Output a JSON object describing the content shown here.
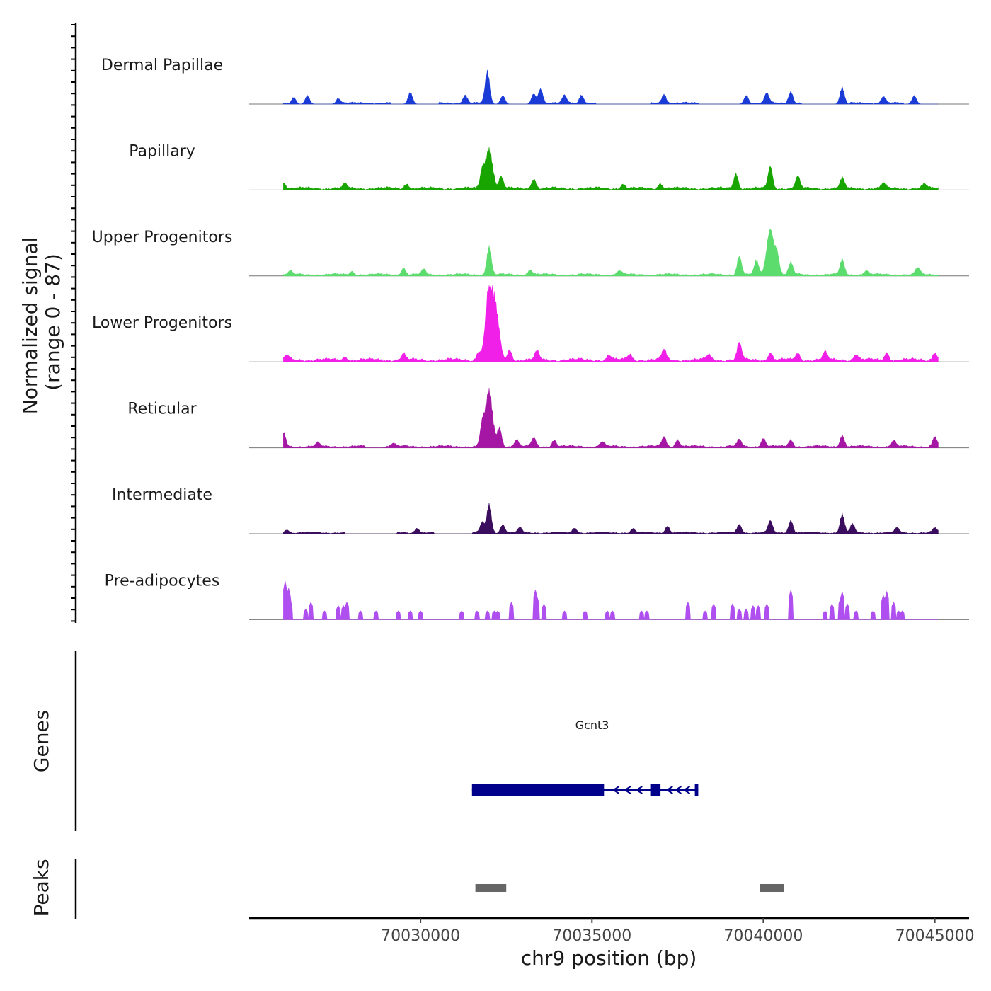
{
  "chart_data": {
    "type": "area",
    "figure": "coverage-plot",
    "y_axis": {
      "title_line1": "Normalized signal",
      "title_line2": "(range 0 - 87)",
      "range": [
        0,
        87
      ]
    },
    "x_axis": {
      "title": "chr9 position (bp)",
      "range": [
        70025000,
        70046000
      ],
      "ticks": [
        70030000,
        70035000,
        70040000,
        70045000
      ],
      "tick_labels": [
        "70030000",
        "70035000",
        "70040000",
        "70045000"
      ]
    },
    "genes_title": "Genes",
    "peaks_title": "Peaks",
    "signal_extent": [
      70026000,
      70045100
    ],
    "series": [
      {
        "name": "Dermal Papillae",
        "color": "#1a3bd6",
        "baseline": 1.5,
        "mode": "sparse",
        "gaps": [
          [
            70035400,
            70036700
          ],
          [
            70038400,
            70038700
          ],
          [
            70041500,
            70042300
          ]
        ],
        "peaks": [
          [
            70026300,
            8
          ],
          [
            70026700,
            10
          ],
          [
            70027600,
            6
          ],
          [
            70029700,
            14
          ],
          [
            70031300,
            10
          ],
          [
            70031950,
            38
          ],
          [
            70032400,
            10
          ],
          [
            70033300,
            12
          ],
          [
            70033500,
            18
          ],
          [
            70034200,
            9
          ],
          [
            70034700,
            10
          ],
          [
            70037100,
            11
          ],
          [
            70039500,
            10
          ],
          [
            70040100,
            12
          ],
          [
            70040800,
            14
          ],
          [
            70042300,
            20
          ],
          [
            70043500,
            8
          ],
          [
            70044400,
            10
          ]
        ]
      },
      {
        "name": "Papillary",
        "color": "#18a500",
        "baseline": 2.5,
        "mode": "dense",
        "peaks": [
          [
            70026000,
            8
          ],
          [
            70027800,
            5
          ],
          [
            70029600,
            6
          ],
          [
            70031800,
            20
          ],
          [
            70032000,
            48
          ],
          [
            70032350,
            14
          ],
          [
            70033300,
            12
          ],
          [
            70035900,
            5
          ],
          [
            70037000,
            6
          ],
          [
            70039200,
            18
          ],
          [
            70040200,
            26
          ],
          [
            70041000,
            14
          ],
          [
            70042300,
            12
          ],
          [
            70043500,
            6
          ],
          [
            70044700,
            5
          ]
        ]
      },
      {
        "name": "Upper Progenitors",
        "color": "#5ddc6e",
        "baseline": 2,
        "mode": "dense",
        "peaks": [
          [
            70026200,
            4
          ],
          [
            70028000,
            4
          ],
          [
            70029500,
            8
          ],
          [
            70030100,
            6
          ],
          [
            70032000,
            34
          ],
          [
            70033200,
            6
          ],
          [
            70035800,
            5
          ],
          [
            70039300,
            22
          ],
          [
            70039800,
            16
          ],
          [
            70040200,
            55
          ],
          [
            70040400,
            24
          ],
          [
            70040800,
            14
          ],
          [
            70042300,
            18
          ],
          [
            70043000,
            5
          ],
          [
            70044500,
            8
          ]
        ]
      },
      {
        "name": "Lower Progenitors",
        "color": "#f020e8",
        "baseline": 3,
        "mode": "dense",
        "peaks": [
          [
            70026100,
            5
          ],
          [
            70027800,
            4
          ],
          [
            70029500,
            7
          ],
          [
            70031700,
            10
          ],
          [
            70032000,
            87
          ],
          [
            70032200,
            55
          ],
          [
            70032600,
            12
          ],
          [
            70033400,
            10
          ],
          [
            70035500,
            6
          ],
          [
            70036100,
            7
          ],
          [
            70037100,
            12
          ],
          [
            70038400,
            6
          ],
          [
            70039300,
            20
          ],
          [
            70040200,
            9
          ],
          [
            70041000,
            8
          ],
          [
            70041800,
            9
          ],
          [
            70042700,
            7
          ],
          [
            70043600,
            9
          ],
          [
            70045000,
            10
          ]
        ]
      },
      {
        "name": "Reticular",
        "color": "#a516a5",
        "baseline": 2,
        "mode": "dense",
        "gaps": [
          [
            70028400,
            70028900
          ]
        ],
        "peaks": [
          [
            70026000,
            17
          ],
          [
            70027000,
            4
          ],
          [
            70029200,
            4
          ],
          [
            70031800,
            24
          ],
          [
            70032000,
            66
          ],
          [
            70032300,
            22
          ],
          [
            70032800,
            8
          ],
          [
            70033300,
            10
          ],
          [
            70033900,
            8
          ],
          [
            70035300,
            6
          ],
          [
            70037100,
            12
          ],
          [
            70037500,
            8
          ],
          [
            70039300,
            8
          ],
          [
            70040000,
            10
          ],
          [
            70040800,
            8
          ],
          [
            70042300,
            14
          ],
          [
            70043800,
            7
          ],
          [
            70045000,
            12
          ]
        ]
      },
      {
        "name": "Intermediate",
        "color": "#3b0d5e",
        "baseline": 1.5,
        "mode": "dense",
        "gaps": [
          [
            70027800,
            70029300
          ],
          [
            70030400,
            70031500
          ]
        ],
        "peaks": [
          [
            70026100,
            4
          ],
          [
            70029900,
            6
          ],
          [
            70031800,
            12
          ],
          [
            70032000,
            34
          ],
          [
            70032400,
            10
          ],
          [
            70032900,
            6
          ],
          [
            70034500,
            6
          ],
          [
            70036200,
            5
          ],
          [
            70037200,
            8
          ],
          [
            70039300,
            10
          ],
          [
            70040200,
            14
          ],
          [
            70040800,
            15
          ],
          [
            70042300,
            22
          ],
          [
            70042600,
            10
          ],
          [
            70043900,
            6
          ],
          [
            70045000,
            6
          ]
        ]
      },
      {
        "name": "Pre-adipocytes",
        "color": "#b04ff0",
        "baseline": 0,
        "mode": "spikes",
        "peaks": [
          [
            70026050,
            44
          ],
          [
            70026150,
            36
          ],
          [
            70026200,
            22
          ],
          [
            70026650,
            12
          ],
          [
            70026800,
            20
          ],
          [
            70027200,
            10
          ],
          [
            70027600,
            16
          ],
          [
            70027750,
            16
          ],
          [
            70027850,
            20
          ],
          [
            70028250,
            10
          ],
          [
            70028700,
            10
          ],
          [
            70029350,
            10
          ],
          [
            70029700,
            10
          ],
          [
            70030000,
            10
          ],
          [
            70031200,
            10
          ],
          [
            70031650,
            10
          ],
          [
            70031950,
            10
          ],
          [
            70032150,
            10
          ],
          [
            70032250,
            10
          ],
          [
            70032650,
            20
          ],
          [
            70033350,
            34
          ],
          [
            70033400,
            26
          ],
          [
            70033600,
            18
          ],
          [
            70034200,
            10
          ],
          [
            70034800,
            10
          ],
          [
            70035450,
            10
          ],
          [
            70035600,
            10
          ],
          [
            70036450,
            10
          ],
          [
            70036600,
            10
          ],
          [
            70037800,
            20
          ],
          [
            70038300,
            10
          ],
          [
            70038550,
            18
          ],
          [
            70039100,
            18
          ],
          [
            70039300,
            12
          ],
          [
            70039500,
            12
          ],
          [
            70039700,
            16
          ],
          [
            70039850,
            16
          ],
          [
            70040100,
            18
          ],
          [
            70040800,
            34
          ],
          [
            70041800,
            10
          ],
          [
            70042000,
            18
          ],
          [
            70042250,
            24
          ],
          [
            70042300,
            32
          ],
          [
            70042450,
            18
          ],
          [
            70042700,
            10
          ],
          [
            70043200,
            10
          ],
          [
            70043500,
            28
          ],
          [
            70043600,
            32
          ],
          [
            70043800,
            20
          ],
          [
            70043950,
            10
          ],
          [
            70044050,
            10
          ]
        ]
      }
    ],
    "genes": [
      {
        "name": "Gcnt3",
        "start": 70031500,
        "end": 70038100,
        "strand": "-",
        "exons": [
          [
            70031500,
            70035350
          ],
          [
            70036700,
            70037000
          ],
          [
            70038000,
            70038100
          ]
        ],
        "color": "#00008b"
      }
    ],
    "peaks": [
      [
        70031600,
        70032500
      ],
      [
        70039900,
        70040600
      ]
    ],
    "peak_color": "#666666"
  }
}
